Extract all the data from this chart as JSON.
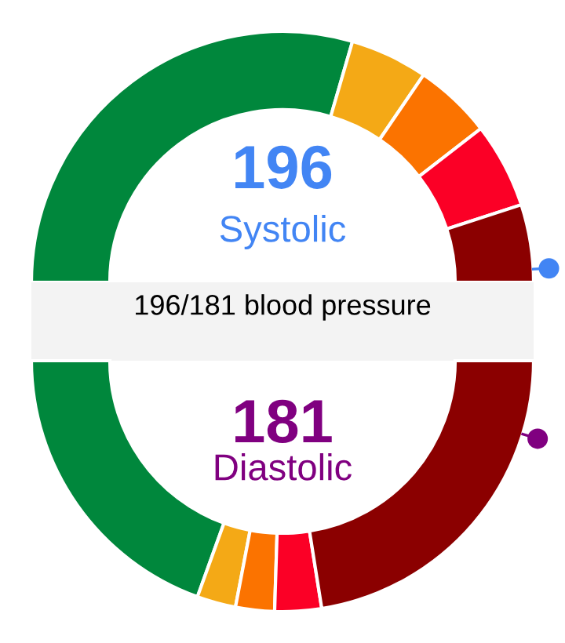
{
  "chart_data": [
    {
      "type": "donut",
      "title": "196",
      "subtitle": "Systolic",
      "annotations": [
        "196/181 blood pressure"
      ],
      "categories": [
        null,
        null,
        null,
        null,
        null
      ],
      "values": [
        59,
        10,
        10,
        11,
        10
      ],
      "colors": [
        "#00873c",
        "#f4a916",
        "#fb7300",
        "#fb0026",
        "#8b0000"
      ]
    },
    {
      "type": "donut",
      "title": "181",
      "subtitle": "Diastolic",
      "categories": [
        null,
        null,
        null,
        null,
        null
      ],
      "values": [
        39,
        5,
        5,
        6,
        45
      ],
      "colors": [
        "#00873c",
        "#f4a916",
        "#fb7300",
        "#fb0026",
        "#8b0000"
      ]
    }
  ]
}
